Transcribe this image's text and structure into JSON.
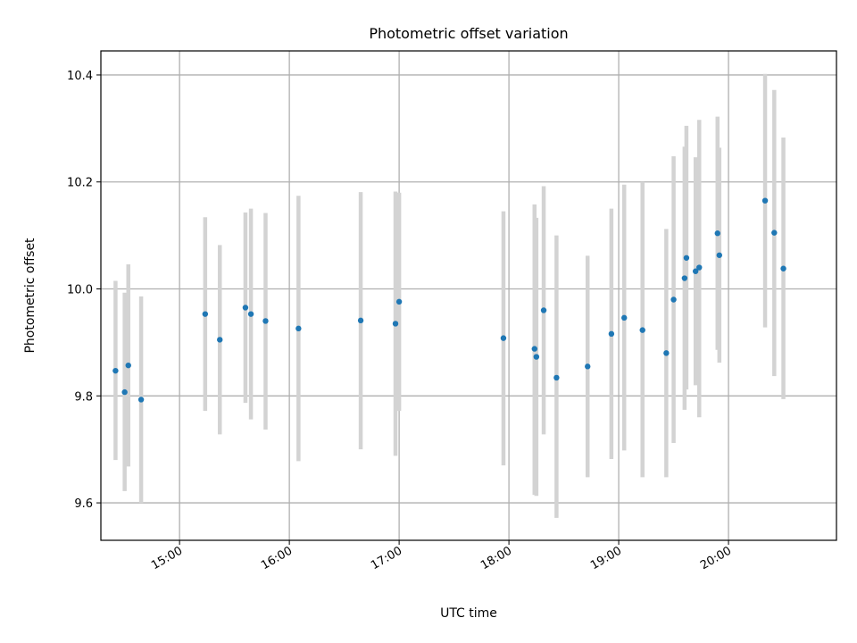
{
  "chart_data": {
    "type": "scatter",
    "title": "Photometric offset variation",
    "xlabel": "UTC time",
    "ylabel": "Photometric offset",
    "x_ticks": [
      "15:00",
      "16:00",
      "17:00",
      "18:00",
      "19:00",
      "20:00"
    ],
    "y_ticks": [
      "9.6",
      "9.8",
      "10.0",
      "10.2",
      "10.4"
    ],
    "xlim": [
      "14:17",
      "20:59"
    ],
    "ylim": [
      9.53,
      10.445
    ],
    "grid": true,
    "colors": {
      "points": "#1f77b4",
      "error_bars": "#d3d3d3",
      "grid": "#b0b0b0"
    },
    "points": [
      {
        "x": "14:25",
        "y": 9.847,
        "y_low": 9.68,
        "y_high": 10.015
      },
      {
        "x": "14:30",
        "y": 9.807,
        "y_low": 9.622,
        "y_high": 9.993
      },
      {
        "x": "14:32",
        "y": 9.857,
        "y_low": 9.668,
        "y_high": 10.046
      },
      {
        "x": "14:39",
        "y": 9.793,
        "y_low": 9.6,
        "y_high": 9.986
      },
      {
        "x": "15:14",
        "y": 9.953,
        "y_low": 9.772,
        "y_high": 10.134
      },
      {
        "x": "15:22",
        "y": 9.905,
        "y_low": 9.728,
        "y_high": 10.082
      },
      {
        "x": "15:36",
        "y": 9.965,
        "y_low": 9.787,
        "y_high": 10.143
      },
      {
        "x": "15:39",
        "y": 9.953,
        "y_low": 9.756,
        "y_high": 10.15
      },
      {
        "x": "15:47",
        "y": 9.94,
        "y_low": 9.737,
        "y_high": 10.142
      },
      {
        "x": "16:05",
        "y": 9.926,
        "y_low": 9.678,
        "y_high": 10.174
      },
      {
        "x": "16:39",
        "y": 9.941,
        "y_low": 9.7,
        "y_high": 10.181
      },
      {
        "x": "16:58",
        "y": 9.935,
        "y_low": 9.688,
        "y_high": 10.182
      },
      {
        "x": "17:00",
        "y": 9.976,
        "y_low": 9.772,
        "y_high": 10.18
      },
      {
        "x": "17:57",
        "y": 9.908,
        "y_low": 9.67,
        "y_high": 10.145
      },
      {
        "x": "18:14",
        "y": 9.888,
        "y_low": 9.615,
        "y_high": 10.158
      },
      {
        "x": "18:15",
        "y": 9.873,
        "y_low": 9.613,
        "y_high": 10.133
      },
      {
        "x": "18:19",
        "y": 9.96,
        "y_low": 9.728,
        "y_high": 10.192
      },
      {
        "x": "18:26",
        "y": 9.834,
        "y_low": 9.572,
        "y_high": 10.1
      },
      {
        "x": "18:43",
        "y": 9.855,
        "y_low": 9.648,
        "y_high": 10.062
      },
      {
        "x": "18:56",
        "y": 9.916,
        "y_low": 9.682,
        "y_high": 10.15
      },
      {
        "x": "19:03",
        "y": 9.946,
        "y_low": 9.698,
        "y_high": 10.195
      },
      {
        "x": "19:13",
        "y": 9.923,
        "y_low": 9.648,
        "y_high": 10.2
      },
      {
        "x": "19:26",
        "y": 9.88,
        "y_low": 9.648,
        "y_high": 10.112
      },
      {
        "x": "19:30",
        "y": 9.98,
        "y_low": 9.712,
        "y_high": 10.248
      },
      {
        "x": "19:36",
        "y": 10.02,
        "y_low": 9.774,
        "y_high": 10.266
      },
      {
        "x": "19:37",
        "y": 10.058,
        "y_low": 9.812,
        "y_high": 10.305
      },
      {
        "x": "19:42",
        "y": 10.033,
        "y_low": 9.82,
        "y_high": 10.246
      },
      {
        "x": "19:44",
        "y": 10.04,
        "y_low": 9.76,
        "y_high": 10.316
      },
      {
        "x": "19:54",
        "y": 10.104,
        "y_low": 9.886,
        "y_high": 10.322
      },
      {
        "x": "19:55",
        "y": 10.063,
        "y_low": 9.862,
        "y_high": 10.264
      },
      {
        "x": "20:20",
        "y": 10.165,
        "y_low": 9.928,
        "y_high": 10.402
      },
      {
        "x": "20:25",
        "y": 10.105,
        "y_low": 9.837,
        "y_high": 10.372
      },
      {
        "x": "20:30",
        "y": 10.038,
        "y_low": 9.794,
        "y_high": 10.283
      }
    ]
  }
}
